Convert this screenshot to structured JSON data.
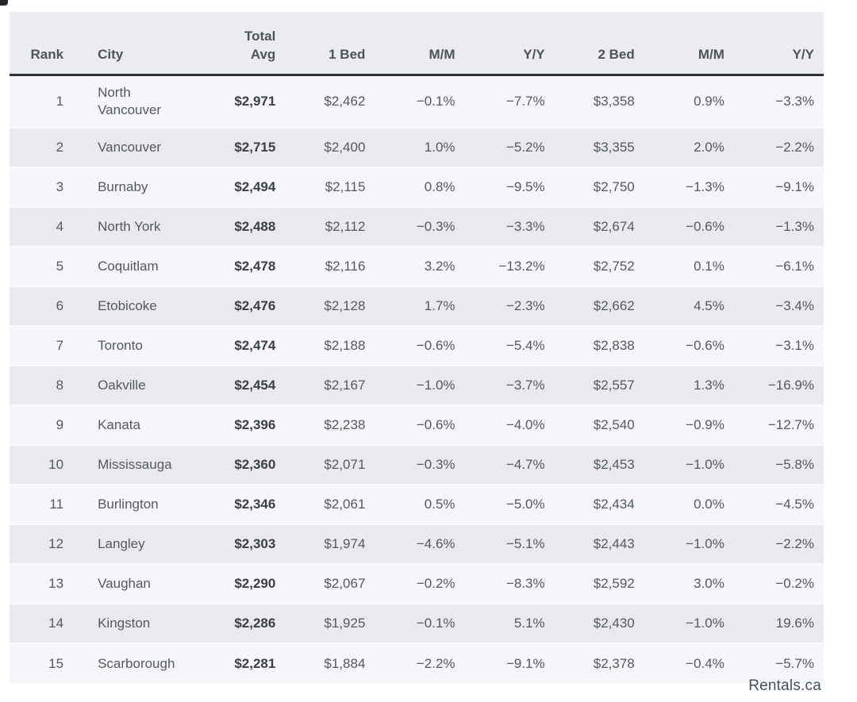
{
  "chart_data": {
    "type": "table",
    "title": "",
    "columns": [
      "Rank",
      "City",
      "Total Avg",
      "1 Bed",
      "M/M",
      "Y/Y",
      "2 Bed",
      "M/M",
      "Y/Y"
    ],
    "rows": [
      [
        "1",
        "North Vancouver",
        "$2,971",
        "$2,462",
        "−0.1%",
        "−7.7%",
        "$3,358",
        "0.9%",
        "−3.3%"
      ],
      [
        "2",
        "Vancouver",
        "$2,715",
        "$2,400",
        "1.0%",
        "−5.2%",
        "$3,355",
        "2.0%",
        "−2.2%"
      ],
      [
        "3",
        "Burnaby",
        "$2,494",
        "$2,115",
        "0.8%",
        "−9.5%",
        "$2,750",
        "−1.3%",
        "−9.1%"
      ],
      [
        "4",
        "North York",
        "$2,488",
        "$2,112",
        "−0.3%",
        "−3.3%",
        "$2,674",
        "−0.6%",
        "−1.3%"
      ],
      [
        "5",
        "Coquitlam",
        "$2,478",
        "$2,116",
        "3.2%",
        "−13.2%",
        "$2,752",
        "0.1%",
        "−6.1%"
      ],
      [
        "6",
        "Etobicoke",
        "$2,476",
        "$2,128",
        "1.7%",
        "−2.3%",
        "$2,662",
        "4.5%",
        "−3.4%"
      ],
      [
        "7",
        "Toronto",
        "$2,474",
        "$2,188",
        "−0.6%",
        "−5.4%",
        "$2,838",
        "−0.6%",
        "−3.1%"
      ],
      [
        "8",
        "Oakville",
        "$2,454",
        "$2,167",
        "−1.0%",
        "−3.7%",
        "$2,557",
        "1.3%",
        "−16.9%"
      ],
      [
        "9",
        "Kanata",
        "$2,396",
        "$2,238",
        "−0.6%",
        "−4.0%",
        "$2,540",
        "−0.9%",
        "−12.7%"
      ],
      [
        "10",
        "Mississauga",
        "$2,360",
        "$2,071",
        "−0.3%",
        "−4.7%",
        "$2,453",
        "−1.0%",
        "−5.8%"
      ],
      [
        "11",
        "Burlington",
        "$2,346",
        "$2,061",
        "0.5%",
        "−5.0%",
        "$2,434",
        "0.0%",
        "−4.5%"
      ],
      [
        "12",
        "Langley",
        "$2,303",
        "$1,974",
        "−4.6%",
        "−5.1%",
        "$2,443",
        "−1.0%",
        "−2.2%"
      ],
      [
        "13",
        "Vaughan",
        "$2,290",
        "$2,067",
        "−0.2%",
        "−8.3%",
        "$2,592",
        "3.0%",
        "−0.2%"
      ],
      [
        "14",
        "Kingston",
        "$2,286",
        "$1,925",
        "−0.1%",
        "5.1%",
        "$2,430",
        "−1.0%",
        "19.6%"
      ],
      [
        "15",
        "Scarborough",
        "$2,281",
        "$1,884",
        "−2.2%",
        "−9.1%",
        "$2,378",
        "−0.4%",
        "−5.7%"
      ]
    ],
    "layout_hints": {
      "zebra_striping": true,
      "header_underline": true
    }
  },
  "header_labels": [
    "Rank",
    "City",
    "Total\nAvg",
    "1 Bed",
    "M/M",
    "Y/Y",
    "2 Bed",
    "M/M",
    "Y/Y"
  ],
  "footer": {
    "brand": "Rentals.ca"
  },
  "colors": {
    "header_bg": "#eaecf1",
    "row_light": "#f5f6fa",
    "row_dark": "#e9eaee",
    "header_divider": "#2f3237",
    "text": "#55585f",
    "text_bold": "#3b3e44",
    "brand_text": "#44505c"
  }
}
